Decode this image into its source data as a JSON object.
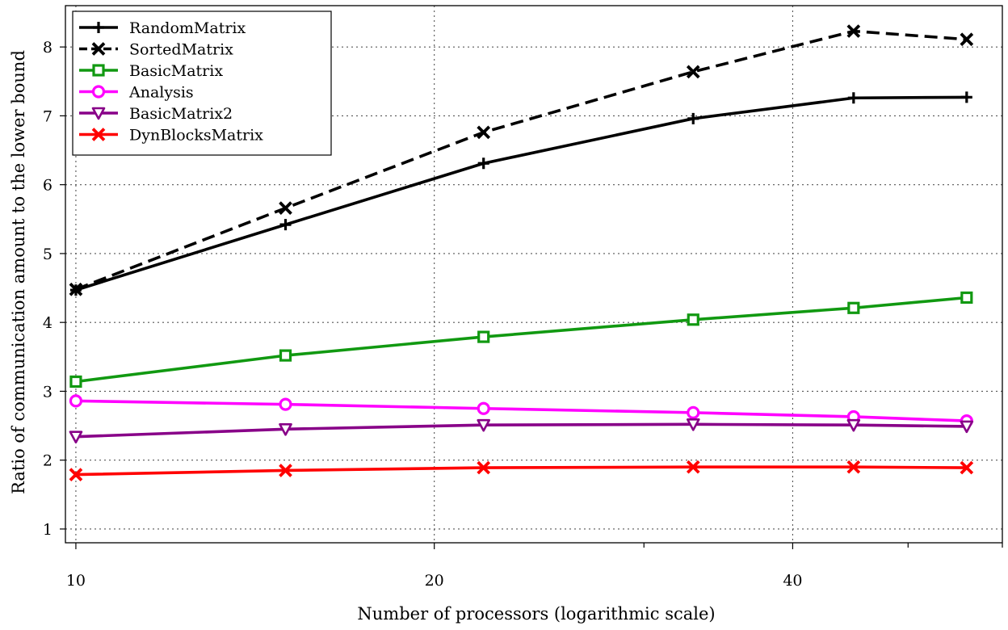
{
  "chart_data": {
    "type": "line",
    "title": "",
    "xlabel": "Number of processors (logarithmic scale)",
    "ylabel": "Ratio of communication amount to the lower bound",
    "x_scale": "log",
    "xlim": [
      9.8,
      60
    ],
    "ylim": [
      0.8,
      8.6
    ],
    "x_ticks": [
      10,
      20,
      40
    ],
    "x_minor_ticks": [
      30,
      50,
      60
    ],
    "y_ticks": [
      1,
      2,
      3,
      4,
      5,
      6,
      7,
      8
    ],
    "grid": true,
    "legend_position": "top-left",
    "x": [
      10,
      15,
      22,
      33,
      45,
      56
    ],
    "series": [
      {
        "name": "RandomMatrix",
        "values": [
          4.47,
          5.42,
          6.31,
          6.96,
          7.26,
          7.27
        ],
        "color": "#000000",
        "marker": "plus",
        "dash": "solid"
      },
      {
        "name": "SortedMatrix",
        "values": [
          4.48,
          5.66,
          6.76,
          7.64,
          8.23,
          8.11
        ],
        "color": "#000000",
        "marker": "cross",
        "dash": "dashed"
      },
      {
        "name": "BasicMatrix",
        "values": [
          3.14,
          3.52,
          3.79,
          4.04,
          4.21,
          4.36
        ],
        "color": "#119911",
        "marker": "square",
        "dash": "solid"
      },
      {
        "name": "Analysis",
        "values": [
          2.86,
          2.81,
          2.75,
          2.69,
          2.63,
          2.57
        ],
        "color": "#ff00ff",
        "marker": "circle",
        "dash": "solid"
      },
      {
        "name": "BasicMatrix2",
        "values": [
          2.34,
          2.45,
          2.51,
          2.52,
          2.51,
          2.49
        ],
        "color": "#880088",
        "marker": "triangle-down",
        "dash": "solid"
      },
      {
        "name": "DynBlocksMatrix",
        "values": [
          1.79,
          1.85,
          1.89,
          1.9,
          1.9,
          1.89
        ],
        "color": "#ff0000",
        "marker": "cross",
        "dash": "solid"
      }
    ]
  }
}
